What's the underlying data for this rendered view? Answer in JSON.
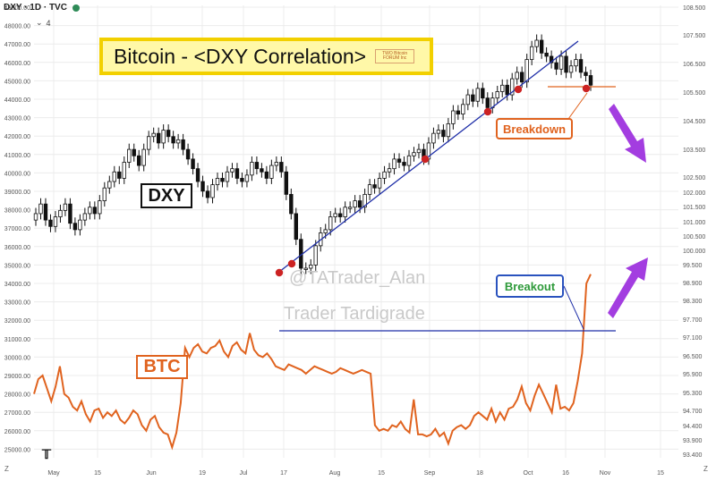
{
  "header": {
    "symbol": "DXY · 1D · TVC",
    "sub_count": "4",
    "status_color": "#2e8b57"
  },
  "title": "Bitcoin - <DXY Correlation>",
  "title_logo": "TWO Bitcoin FORUM Inc",
  "labels": {
    "dxy": "DXY",
    "btc": "BTC",
    "breakdown": "Breakdown",
    "breakout": "Breakout"
  },
  "watermarks": [
    "@TATrader_Alan",
    "Trader Tardigrade"
  ],
  "corners": {
    "left": "Z",
    "right": "Z"
  },
  "colors": {
    "btc_line": "#e0631f",
    "trend_line": "#1f2fa8",
    "pivot_dot": "#cc2222",
    "candle_up": "#ffffff",
    "candle_down": "#111111",
    "arrow": "#a33de0",
    "grid": "#ececec"
  },
  "chart_data": [
    {
      "type": "line",
      "name": "BTC",
      "x_ticks": [
        "May",
        "15",
        "Jun",
        "19",
        "Jul",
        "17",
        "Aug",
        "15",
        "Sep",
        "18",
        "Oct",
        "16",
        "Nov",
        "15"
      ],
      "y_ticks_left": [
        "49000.00",
        "48000.00",
        "47000.00",
        "46000.00",
        "45000.00",
        "44000.00",
        "43000.00",
        "42000.00",
        "41000.00",
        "40000.00",
        "39000.00",
        "38000.00",
        "37000.00",
        "36000.00",
        "35000.00",
        "34000.00",
        "33000.00",
        "32000.00",
        "31000.00",
        "30000.00",
        "29000.00",
        "28000.00",
        "27000.00",
        "26000.00",
        "25000.00"
      ],
      "ylim": [
        24600,
        49200
      ],
      "series": [
        {
          "name": "BTC",
          "values": [
            28000,
            28800,
            29000,
            28300,
            27600,
            28400,
            29500,
            28000,
            27800,
            27300,
            27100,
            27600,
            26900,
            26500,
            27100,
            27200,
            26700,
            27000,
            26800,
            27100,
            26600,
            26400,
            26700,
            27100,
            26900,
            26300,
            26000,
            26600,
            26800,
            26200,
            25900,
            25800,
            25100,
            25900,
            27500,
            30500,
            30000,
            30500,
            30700,
            30300,
            30200,
            30500,
            30600,
            30900,
            30300,
            30000,
            30600,
            30800,
            30400,
            30200,
            31300,
            30400,
            30100,
            30000,
            30200,
            29900,
            29500,
            29400,
            29300,
            29600,
            29500,
            29400,
            29300,
            29100,
            29300,
            29500,
            29400,
            29300,
            29200,
            29100,
            29200,
            29400,
            29300,
            29200,
            29100,
            29200,
            29300,
            29200,
            29100,
            26300,
            26000,
            26100,
            26000,
            26300,
            26200,
            26500,
            26100,
            25900,
            27700,
            25800,
            25800,
            25700,
            25800,
            26100,
            25700,
            25900,
            25300,
            26000,
            26200,
            26300,
            26100,
            26300,
            26800,
            27000,
            26800,
            26600,
            27200,
            26500,
            27000,
            26600,
            27200,
            27300,
            27700,
            28400,
            27500,
            27100,
            27900,
            28500,
            28000,
            27500,
            27000,
            28500,
            27200,
            27300,
            27100,
            27500,
            28700,
            30200,
            34000,
            34500
          ]
        }
      ]
    },
    {
      "type": "candlestick",
      "name": "DXY",
      "y_ticks_right": [
        "108.500",
        "107.500",
        "106.500",
        "105.500",
        "104.500",
        "103.500",
        "102.500",
        "102.000",
        "101.500",
        "101.000",
        "100.500",
        "100.000",
        "99.500",
        "98.900",
        "98.300",
        "97.700",
        "97.100",
        "96.500",
        "95.900",
        "95.300",
        "94.700",
        "94.400",
        "93.900",
        "93.400"
      ],
      "annotations": [
        "DXY",
        "Breakdown"
      ],
      "close": [
        101.6,
        101.9,
        101.4,
        101.2,
        101.5,
        101.7,
        101.9,
        101.3,
        101.1,
        101.4,
        101.6,
        101.8,
        101.6,
        102.0,
        102.4,
        102.6,
        102.9,
        102.7,
        103.2,
        103.6,
        103.4,
        103.1,
        103.6,
        104.0,
        104.1,
        103.8,
        104.2,
        104.0,
        103.8,
        103.9,
        103.6,
        103.3,
        103.0,
        102.6,
        102.3,
        102.1,
        102.5,
        102.7,
        102.6,
        102.9,
        103.0,
        102.7,
        102.6,
        102.8,
        103.2,
        103.0,
        102.9,
        102.7,
        103.1,
        103.2,
        102.9,
        102.2,
        101.6,
        100.8,
        99.9,
        99.9,
        100.0,
        100.6,
        101.0,
        101.1,
        101.5,
        101.6,
        101.5,
        101.8,
        101.8,
        102.0,
        101.8,
        102.2,
        102.5,
        102.4,
        102.7,
        102.9,
        103.0,
        103.3,
        103.2,
        103.1,
        103.4,
        103.5,
        103.6,
        103.3,
        103.8,
        104.1,
        104.2,
        104.0,
        104.4,
        104.8,
        104.7,
        105.0,
        105.3,
        105.1,
        105.5,
        105.2,
        104.9,
        105.2,
        105.4,
        105.6,
        105.3,
        105.8,
        106.0,
        105.7,
        106.4,
        106.8,
        107.0,
        106.6,
        106.5,
        106.3,
        106.1,
        106.5,
        106.0,
        106.2,
        106.4,
        106.0,
        105.9,
        105.6
      ]
    }
  ]
}
